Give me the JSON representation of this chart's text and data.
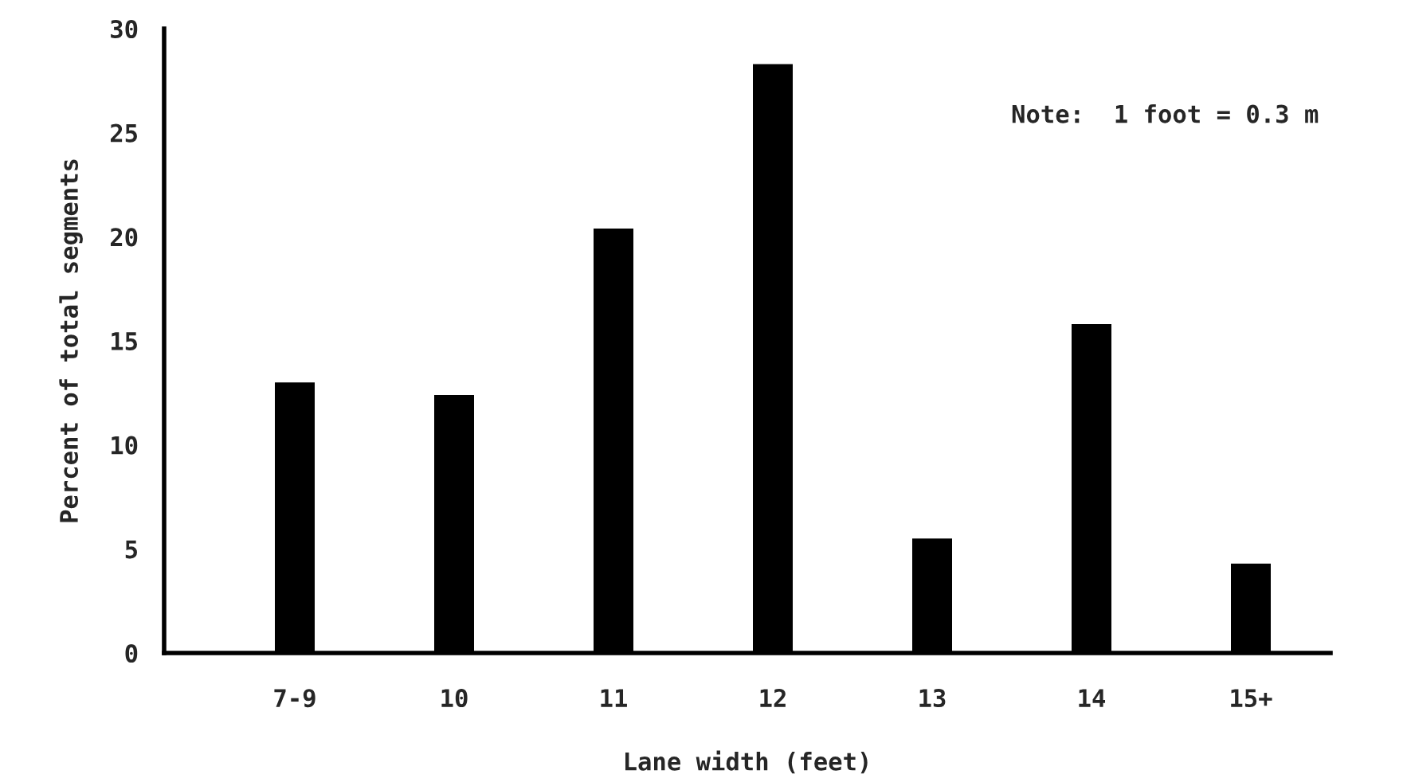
{
  "chart_data": {
    "type": "bar",
    "xlabel": "Lane width (feet)",
    "ylabel": "Percent of total segments",
    "categories": [
      "7-9",
      "10",
      "11",
      "12",
      "13",
      "14",
      "15+"
    ],
    "values": [
      13.0,
      12.4,
      20.4,
      28.3,
      5.5,
      15.8,
      4.3
    ],
    "color": "#000000",
    "ylim": [
      0,
      30
    ],
    "yticks": [
      0,
      5,
      10,
      15,
      20,
      25,
      30
    ],
    "grid": false,
    "annotations": [
      "Note:  1 foot = 0.3 m"
    ]
  }
}
